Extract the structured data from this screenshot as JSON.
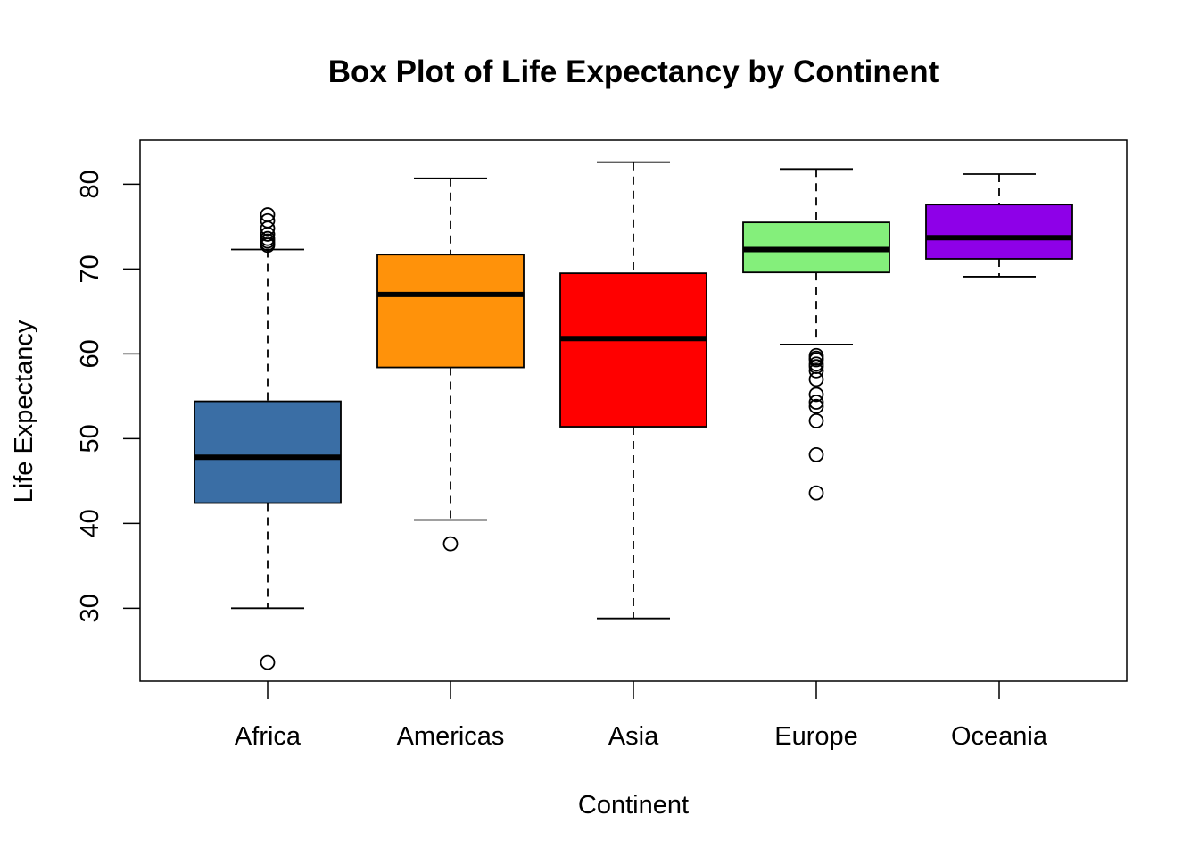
{
  "chart_data": {
    "type": "box",
    "title": "Box Plot of Life Expectancy by Continent",
    "xlabel": "Continent",
    "ylabel": "Life Expectancy",
    "ylim": [
      21.4,
      85.2
    ],
    "yticks": [
      "30",
      "40",
      "50",
      "60",
      "70",
      "80"
    ],
    "grid": false,
    "legend": "none",
    "categories": [
      "Africa",
      "Americas",
      "Asia",
      "Europe",
      "Oceania"
    ],
    "colors": [
      "#3a6ea5",
      "#ff920a",
      "#ff0000",
      "#84ef7b",
      "#8e00e8"
    ],
    "boxes": [
      {
        "whisker_low": 30.0,
        "q1": 42.4,
        "median": 47.8,
        "q3": 54.4,
        "whisker_high": 72.3,
        "outliers": [
          72.8,
          73.0,
          73.3,
          73.6,
          74.1,
          74.8,
          75.7,
          76.4,
          23.6
        ]
      },
      {
        "whisker_low": 40.4,
        "q1": 58.4,
        "median": 67.0,
        "q3": 71.7,
        "whisker_high": 80.7,
        "outliers": [
          37.6
        ]
      },
      {
        "whisker_low": 28.8,
        "q1": 51.4,
        "median": 61.8,
        "q3": 69.5,
        "whisker_high": 82.6,
        "outliers": []
      },
      {
        "whisker_low": 61.1,
        "q1": 69.6,
        "median": 72.3,
        "q3": 75.5,
        "whisker_high": 81.8,
        "outliers": [
          59.8,
          59.5,
          59.3,
          58.8,
          58.5,
          58.0,
          57.0,
          55.2,
          54.3,
          53.8,
          52.1,
          48.1,
          43.6
        ]
      },
      {
        "whisker_low": 69.1,
        "q1": 71.2,
        "median": 73.7,
        "q3": 77.6,
        "whisker_high": 81.2,
        "outliers": []
      }
    ]
  }
}
